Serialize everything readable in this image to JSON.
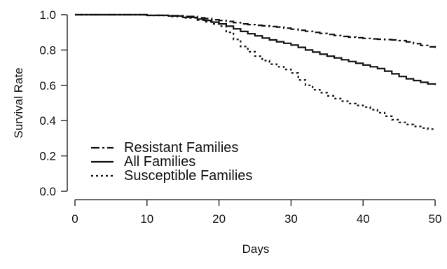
{
  "chart_data": {
    "type": "line",
    "title": "",
    "xlabel": "Days",
    "ylabel": "Survival Rate",
    "xlim": [
      0,
      50
    ],
    "ylim": [
      0,
      1
    ],
    "xticks": [
      "0",
      "10",
      "20",
      "30",
      "40",
      "50"
    ],
    "yticks": [
      "0.0",
      "0.2",
      "0.4",
      "0.6",
      "0.8",
      "1.0"
    ],
    "grid": false,
    "legend_position": "bottom-left",
    "series": [
      {
        "name": "Resistant Families",
        "line_style": "dashdot",
        "color": "#111111",
        "x": [
          0,
          5,
          10,
          13,
          15,
          17,
          18,
          19,
          20,
          21,
          22,
          23,
          24,
          25,
          26,
          27,
          28,
          29,
          30,
          31,
          32,
          33,
          34,
          35,
          36,
          37,
          38,
          39,
          40,
          41,
          42,
          43,
          44,
          45,
          46,
          47,
          48,
          49,
          50
        ],
        "y": [
          1.0,
          1.0,
          0.997,
          0.995,
          0.99,
          0.983,
          0.978,
          0.972,
          0.967,
          0.962,
          0.955,
          0.948,
          0.944,
          0.94,
          0.937,
          0.933,
          0.93,
          0.924,
          0.918,
          0.912,
          0.906,
          0.9,
          0.894,
          0.888,
          0.882,
          0.877,
          0.873,
          0.87,
          0.866,
          0.863,
          0.861,
          0.859,
          0.857,
          0.853,
          0.846,
          0.836,
          0.826,
          0.818,
          0.812
        ]
      },
      {
        "name": "All Families",
        "line_style": "solid",
        "color": "#111111",
        "x": [
          0,
          5,
          10,
          13,
          15,
          17,
          18,
          19,
          20,
          21,
          22,
          23,
          24,
          25,
          26,
          27,
          28,
          29,
          30,
          31,
          32,
          33,
          34,
          35,
          36,
          37,
          38,
          39,
          40,
          41,
          42,
          43,
          44,
          45,
          46,
          47,
          48,
          49,
          50
        ],
        "y": [
          1.0,
          1.0,
          0.996,
          0.993,
          0.985,
          0.975,
          0.968,
          0.958,
          0.948,
          0.935,
          0.92,
          0.905,
          0.892,
          0.88,
          0.868,
          0.857,
          0.847,
          0.838,
          0.828,
          0.815,
          0.8,
          0.788,
          0.776,
          0.765,
          0.755,
          0.745,
          0.735,
          0.725,
          0.715,
          0.705,
          0.695,
          0.68,
          0.665,
          0.65,
          0.637,
          0.627,
          0.617,
          0.608,
          0.602
        ]
      },
      {
        "name": "Susceptible Families",
        "line_style": "dotted",
        "color": "#111111",
        "x": [
          0,
          5,
          10,
          13,
          15,
          17,
          18,
          19,
          20,
          21,
          22,
          23,
          24,
          25,
          26,
          27,
          28,
          29,
          30,
          31,
          32,
          33,
          34,
          35,
          36,
          37,
          38,
          39,
          40,
          41,
          42,
          43,
          44,
          45,
          46,
          47,
          48,
          49,
          50
        ],
        "y": [
          1.0,
          1.0,
          0.996,
          0.99,
          0.982,
          0.97,
          0.96,
          0.948,
          0.935,
          0.9,
          0.86,
          0.82,
          0.79,
          0.765,
          0.74,
          0.72,
          0.705,
          0.69,
          0.67,
          0.63,
          0.6,
          0.575,
          0.558,
          0.54,
          0.525,
          0.51,
          0.497,
          0.486,
          0.477,
          0.462,
          0.445,
          0.425,
          0.405,
          0.39,
          0.378,
          0.367,
          0.358,
          0.352,
          0.35
        ]
      }
    ]
  }
}
